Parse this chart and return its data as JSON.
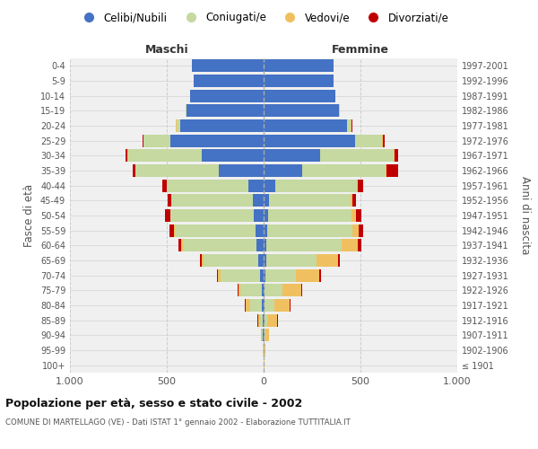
{
  "age_groups": [
    "100+",
    "95-99",
    "90-94",
    "85-89",
    "80-84",
    "75-79",
    "70-74",
    "65-69",
    "60-64",
    "55-59",
    "50-54",
    "45-49",
    "40-44",
    "35-39",
    "30-34",
    "25-29",
    "20-24",
    "15-19",
    "10-14",
    "5-9",
    "0-4"
  ],
  "birth_years": [
    "≤ 1901",
    "1902-1906",
    "1907-1911",
    "1912-1916",
    "1917-1921",
    "1922-1926",
    "1927-1931",
    "1932-1936",
    "1937-1941",
    "1942-1946",
    "1947-1951",
    "1952-1956",
    "1957-1961",
    "1962-1966",
    "1967-1971",
    "1972-1976",
    "1977-1981",
    "1982-1986",
    "1987-1991",
    "1992-1996",
    "1997-2001"
  ],
  "male_celibi": [
    2,
    2,
    3,
    5,
    8,
    10,
    20,
    30,
    35,
    40,
    50,
    55,
    80,
    230,
    320,
    480,
    430,
    400,
    380,
    360,
    370
  ],
  "male_coniugati": [
    0,
    2,
    5,
    15,
    60,
    110,
    200,
    280,
    380,
    420,
    430,
    420,
    420,
    430,
    380,
    140,
    20,
    2,
    0,
    0,
    0
  ],
  "male_vedovi": [
    0,
    2,
    5,
    10,
    25,
    10,
    15,
    10,
    10,
    5,
    3,
    2,
    2,
    2,
    2,
    2,
    2,
    0,
    0,
    0,
    0
  ],
  "male_divorziati": [
    0,
    0,
    0,
    2,
    2,
    5,
    5,
    8,
    15,
    20,
    25,
    20,
    20,
    15,
    10,
    5,
    2,
    0,
    0,
    0,
    0
  ],
  "female_celibi": [
    2,
    2,
    3,
    5,
    5,
    5,
    8,
    15,
    15,
    20,
    25,
    30,
    60,
    200,
    290,
    470,
    430,
    390,
    370,
    360,
    360
  ],
  "female_coniugati": [
    0,
    2,
    5,
    15,
    50,
    90,
    160,
    260,
    390,
    440,
    430,
    420,
    420,
    430,
    380,
    140,
    20,
    2,
    0,
    0,
    0
  ],
  "female_vedovi": [
    2,
    5,
    20,
    50,
    80,
    100,
    120,
    110,
    80,
    30,
    20,
    10,
    5,
    5,
    5,
    5,
    2,
    0,
    0,
    0,
    0
  ],
  "female_divorziati": [
    0,
    0,
    0,
    2,
    2,
    5,
    8,
    10,
    20,
    25,
    30,
    15,
    30,
    60,
    20,
    10,
    5,
    0,
    0,
    0,
    0
  ],
  "color_celibi": "#4472c4",
  "color_coniugati": "#c5d9a0",
  "color_vedovi": "#f0c060",
  "color_divorziati": "#c00000",
  "background_color": "#f0f0f0",
  "grid_color": "#cccccc",
  "title": "Popolazione per età, sesso e stato civile - 2002",
  "subtitle": "COMUNE DI MARTELLAGO (VE) - Dati ISTAT 1° gennaio 2002 - Elaborazione TUTTITALIA.IT",
  "xlabel_left": "Maschi",
  "xlabel_right": "Femmine",
  "ylabel_left": "Fasce di età",
  "ylabel_right": "Anni di nascita",
  "legend_labels": [
    "Celibi/Nubili",
    "Coniugati/e",
    "Vedovi/e",
    "Divorziati/e"
  ],
  "xlim": 1000,
  "xticks": [
    -1000,
    -500,
    0,
    500,
    1000
  ],
  "xticklabels": [
    "1.000",
    "500",
    "0",
    "500",
    "1.000"
  ]
}
